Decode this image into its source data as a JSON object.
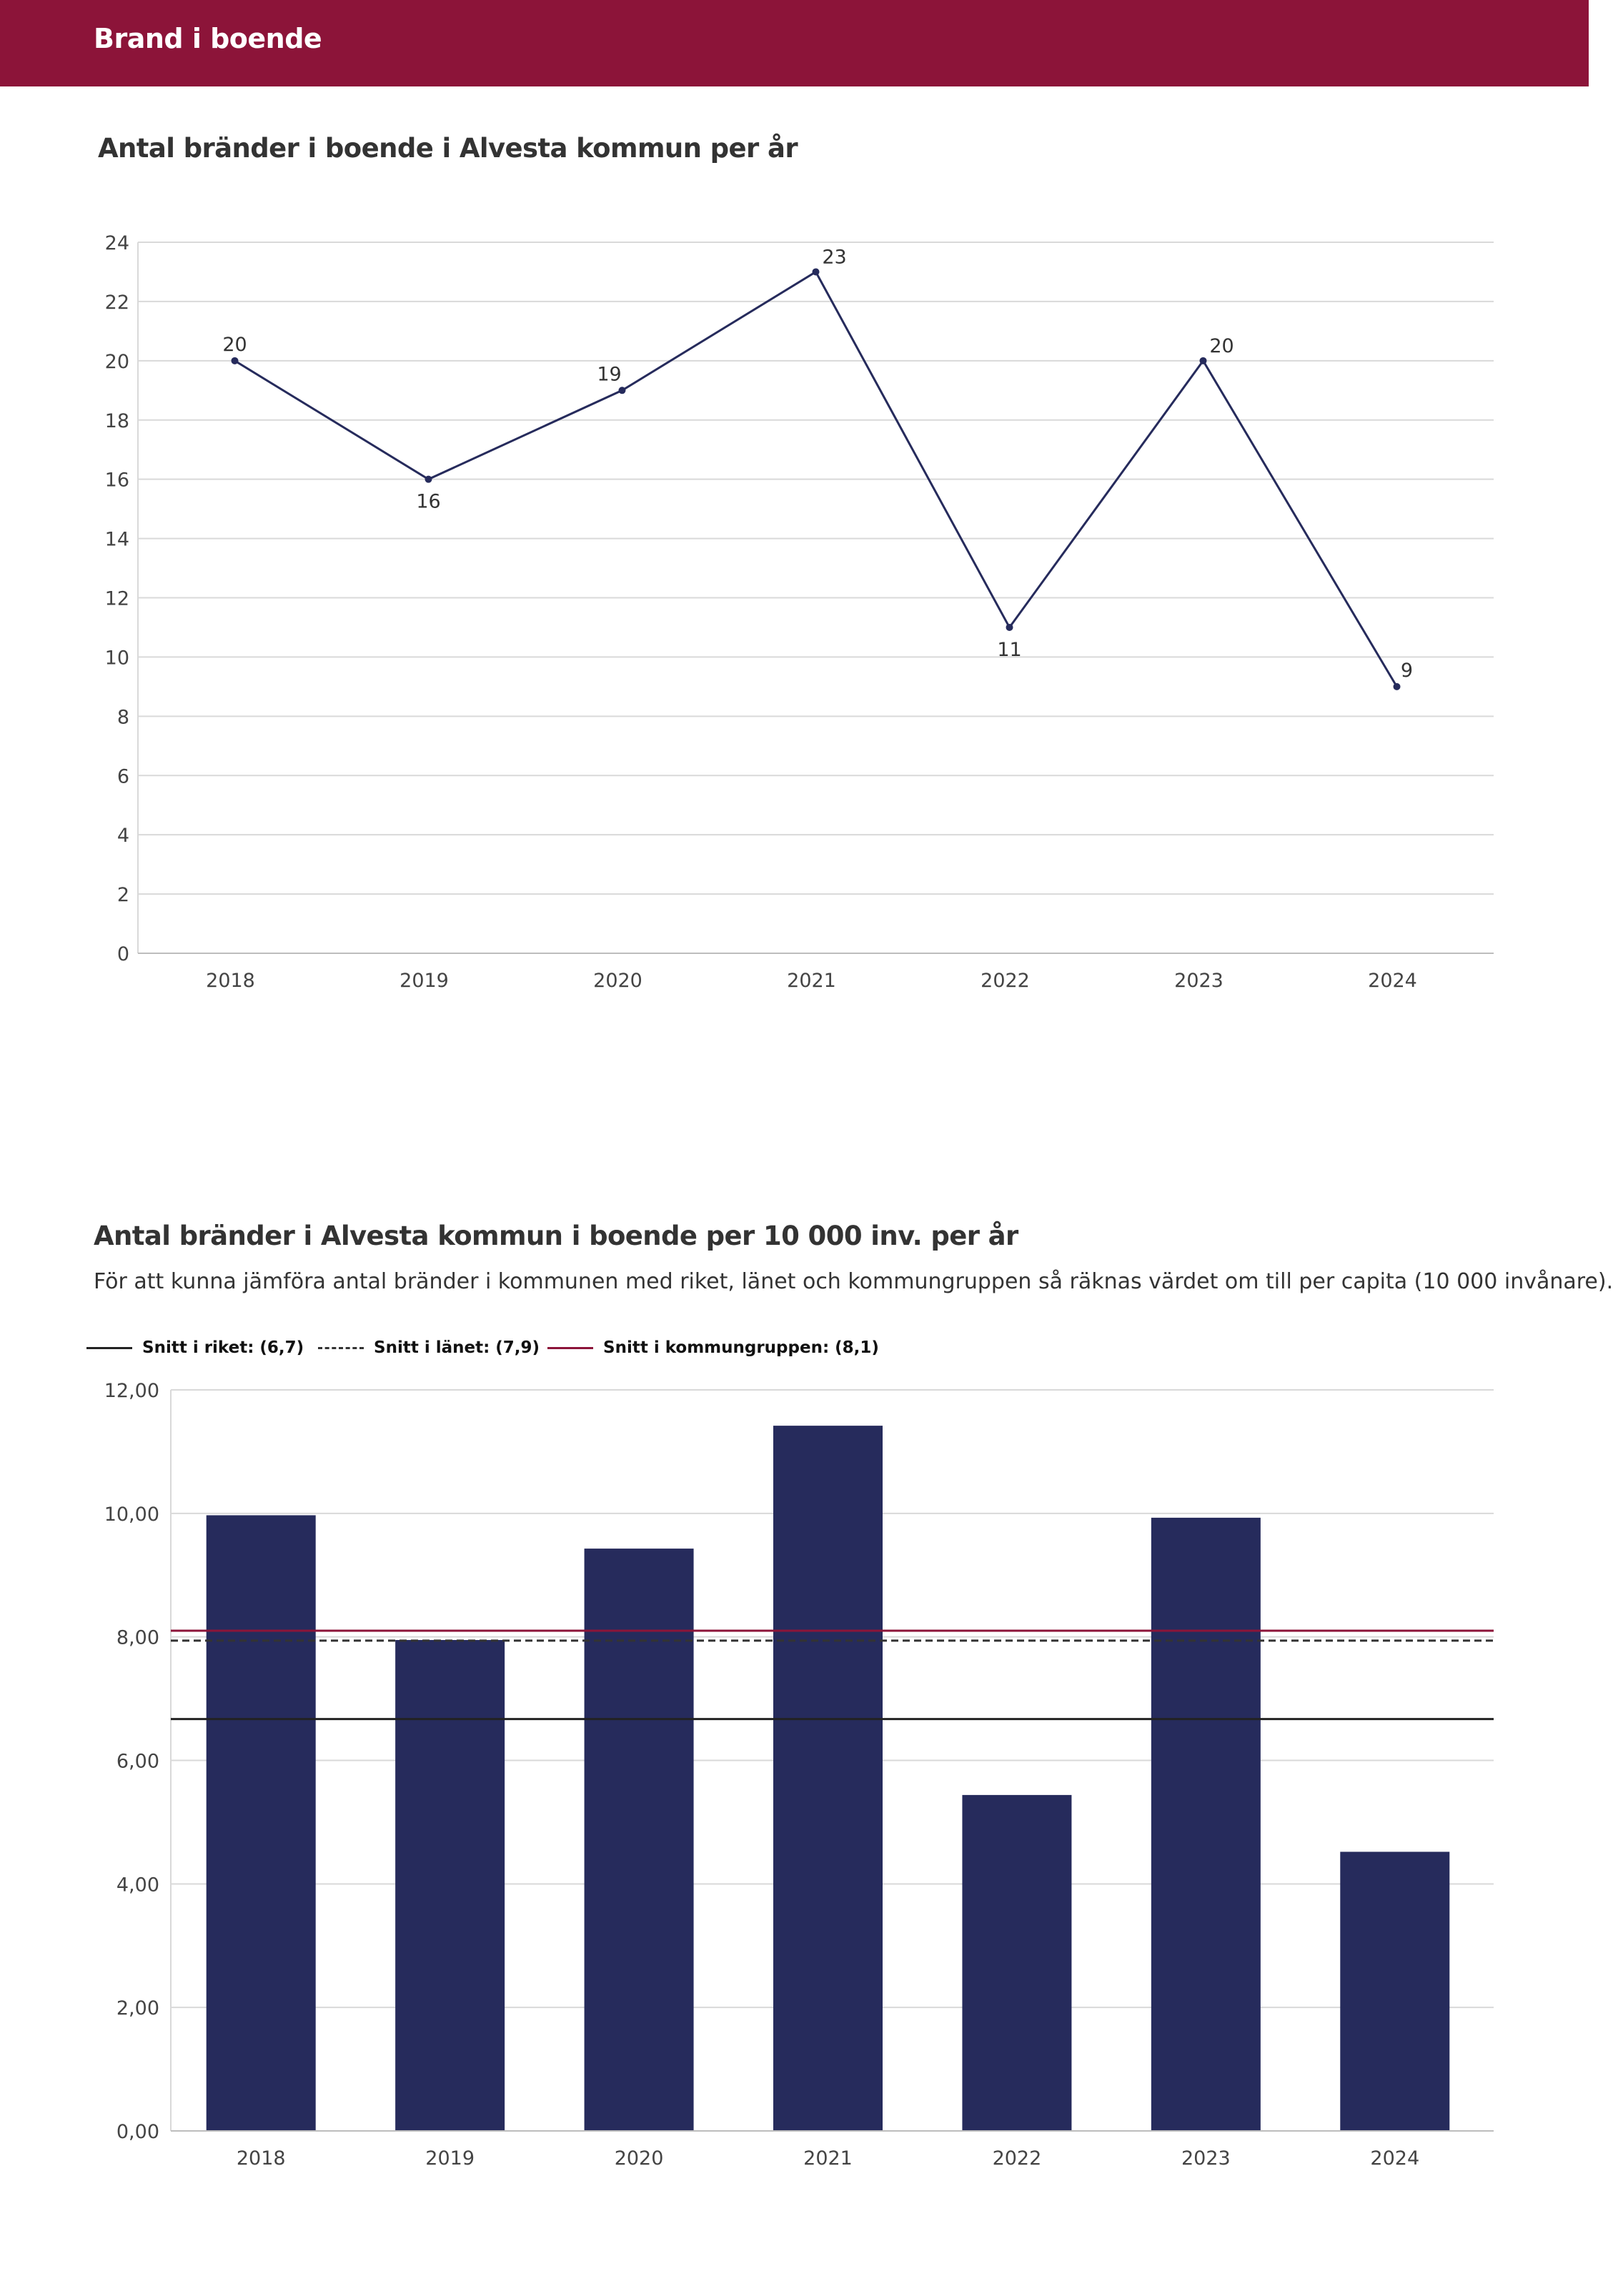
{
  "header": {
    "title": "Brand i boende"
  },
  "colors": {
    "brand": "#8c1439",
    "series": "#262b5c",
    "grid": "#d9d9d9"
  },
  "chart_data": [
    {
      "type": "line",
      "title": "Antal bränder i boende i Alvesta kommun per år",
      "categories": [
        "2018",
        "2019",
        "2020",
        "2021",
        "2022",
        "2023",
        "2024"
      ],
      "values": [
        20,
        16,
        19,
        23,
        11,
        20,
        9
      ],
      "data_labels": [
        "20",
        "16",
        "19",
        "23",
        "11",
        "20",
        "9"
      ],
      "ylim": [
        0,
        24
      ],
      "yticks": [
        "0",
        "2",
        "4",
        "6",
        "8",
        "10",
        "12",
        "14",
        "16",
        "18",
        "20",
        "22",
        "24"
      ],
      "grid": true
    },
    {
      "type": "bar",
      "title": "Antal bränder i Alvesta kommun i boende per 10 000 inv. per år",
      "subtitle": "För att kunna jämföra antal bränder i kommunen med riket, länet och kommungruppen så räknas värdet om till per capita (10 000 invånare).",
      "categories": [
        "2018",
        "2019",
        "2020",
        "2021",
        "2022",
        "2023",
        "2024"
      ],
      "values": [
        9.97,
        7.95,
        9.43,
        11.42,
        5.44,
        9.93,
        4.52
      ],
      "ylim": [
        0,
        12
      ],
      "yticks": [
        "0,00",
        "2,00",
        "4,00",
        "6,00",
        "8,00",
        "10,00",
        "12,00"
      ],
      "reference_lines": [
        {
          "name": "Snitt i riket: (6,7)",
          "value": 6.67,
          "style": "solid",
          "color": "#222222"
        },
        {
          "name": "Snitt i länet: (7,9)",
          "value": 7.94,
          "style": "dashed",
          "color": "#333333"
        },
        {
          "name": "Snitt i kommungruppen: (8,1)",
          "value": 8.1,
          "style": "solid",
          "color": "#8c1439"
        }
      ],
      "grid": true
    }
  ]
}
